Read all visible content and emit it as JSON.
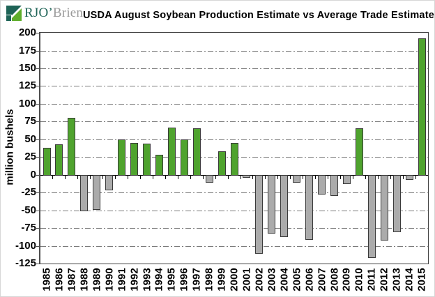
{
  "header": {
    "logo_primary": "RJO’",
    "logo_secondary": "Brien",
    "title": "USDA August Soybean Production Estimate vs Average Trade Estimate"
  },
  "colors": {
    "positive_bar": "#4fa32e",
    "negative_bar": "#ababab",
    "bar_border": "#3a3a3a",
    "gridline": "#7a7a7a",
    "axis": "#4d4d4d",
    "logo_teal": "#1e6356",
    "logo_green": "#5fae2c",
    "logo_text_gray": "#9a9a9a"
  },
  "chart_data": {
    "type": "bar",
    "title": "USDA August Soybean Production Estimate vs Average Trade Estimate",
    "xlabel": "",
    "ylabel": "million bushels",
    "ylim": [
      -125,
      200
    ],
    "ytick_step": 25,
    "grid": "horizontal dash-dot",
    "legend": "none",
    "categories": [
      "1985",
      "1986",
      "1987",
      "1988",
      "1989",
      "1990",
      "1991",
      "1992",
      "1993",
      "1994",
      "1995",
      "1996",
      "1997",
      "1998",
      "1999",
      "2000",
      "2001",
      "2002",
      "2003",
      "2004",
      "2005",
      "2006",
      "2007",
      "2008",
      "2009",
      "2010",
      "2011",
      "2012",
      "2013",
      "2014",
      "2015"
    ],
    "values": [
      38,
      43,
      80,
      -51,
      -49,
      -22,
      50,
      45,
      44,
      28,
      67,
      50,
      66,
      -11,
      33,
      45,
      -4,
      -111,
      -83,
      -88,
      -11,
      -92,
      -28,
      -30,
      -13,
      66,
      -117,
      -93,
      -81,
      -7,
      192
    ],
    "positive_color": "#4fa32e",
    "negative_color": "#ababab"
  }
}
